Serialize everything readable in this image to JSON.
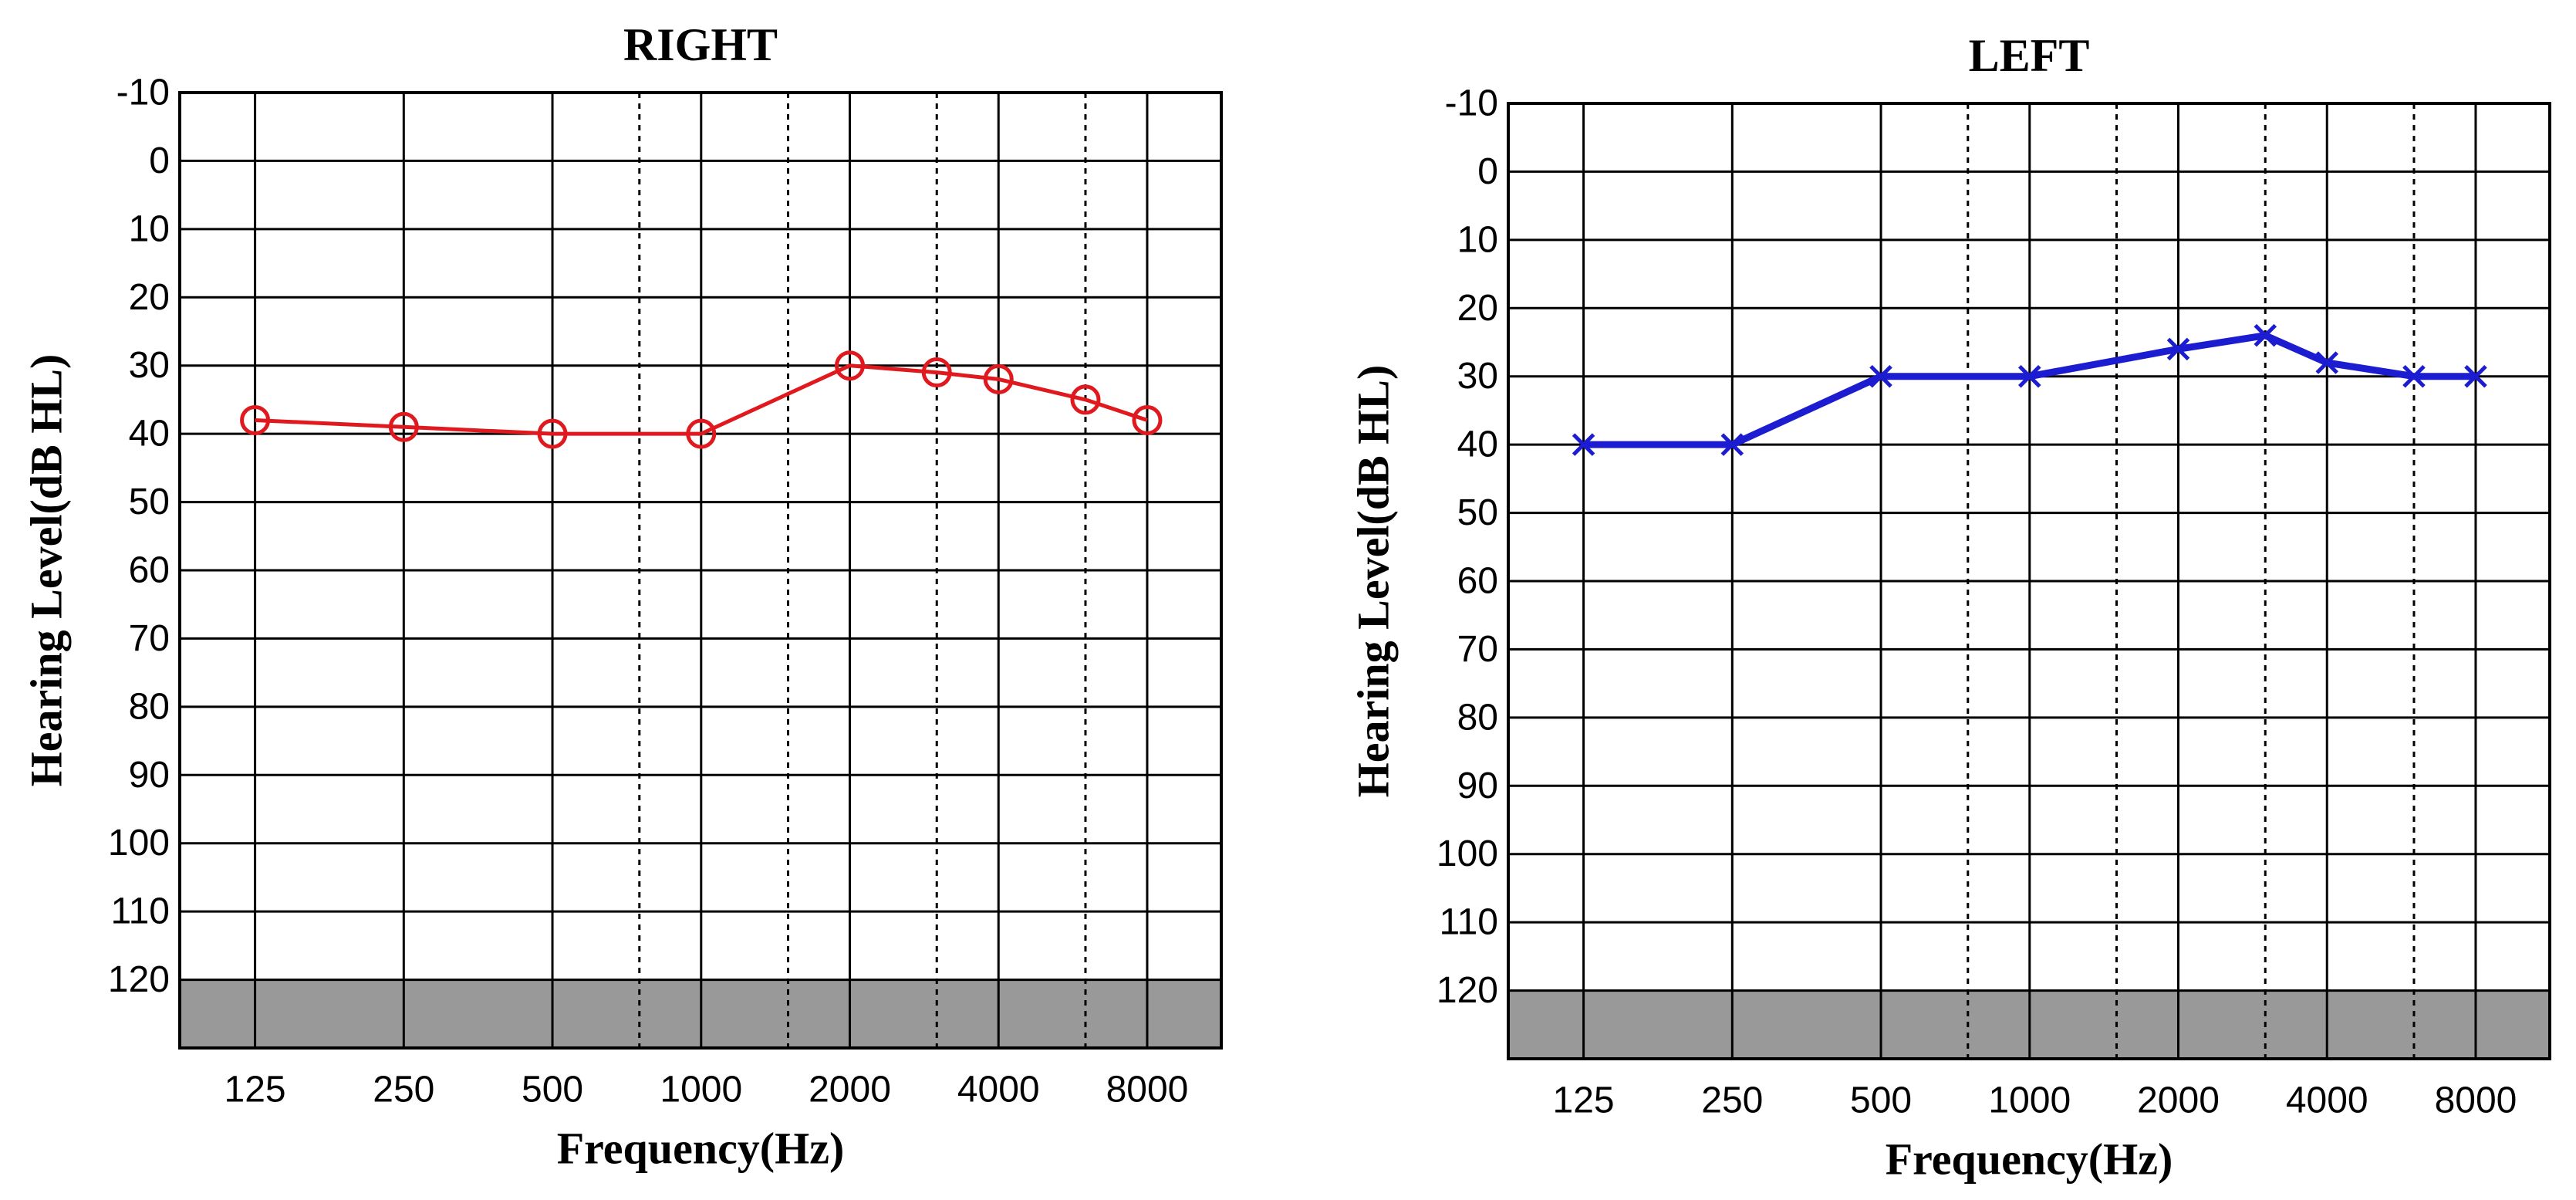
{
  "chart_data": [
    {
      "type": "line",
      "title": "RIGHT",
      "xlabel": "Frequency(Hz)",
      "ylabel": "Hearing Level(dB HL)",
      "x_scale": "log2",
      "x_tick_labels": [
        "125",
        "250",
        "500",
        "1000",
        "2000",
        "4000",
        "8000"
      ],
      "x_ticks": [
        125,
        250,
        500,
        1000,
        2000,
        4000,
        8000
      ],
      "x_intermediate_ticks": [
        750,
        1500,
        3000,
        6000
      ],
      "x_range": [
        88,
        11300
      ],
      "ylim": [
        -10,
        130
      ],
      "y_inverted": true,
      "y_ticks": [
        -10,
        0,
        10,
        20,
        30,
        40,
        50,
        60,
        70,
        80,
        90,
        100,
        110,
        120
      ],
      "grid": true,
      "shaded_band": {
        "from": 120,
        "to": 130,
        "color": "#999999"
      },
      "series": [
        {
          "marker": "circle",
          "color": "#e0191e",
          "x": [
            125,
            250,
            500,
            1000,
            2000,
            3000,
            4000,
            6000,
            8000
          ],
          "y": [
            38,
            39,
            40,
            40,
            30,
            31,
            32,
            35,
            38
          ]
        }
      ]
    },
    {
      "type": "line",
      "title": "LEFT",
      "xlabel": "Frequency(Hz)",
      "ylabel": "Hearing Level(dB HL)",
      "x_scale": "log2",
      "x_tick_labels": [
        "125",
        "250",
        "500",
        "1000",
        "2000",
        "4000",
        "8000"
      ],
      "x_ticks": [
        125,
        250,
        500,
        1000,
        2000,
        4000,
        8000
      ],
      "x_intermediate_ticks": [
        750,
        1500,
        3000,
        6000
      ],
      "x_range": [
        88,
        11300
      ],
      "ylim": [
        -10,
        130
      ],
      "y_inverted": true,
      "y_ticks": [
        -10,
        0,
        10,
        20,
        30,
        40,
        50,
        60,
        70,
        80,
        90,
        100,
        110,
        120
      ],
      "grid": true,
      "shaded_band": {
        "from": 120,
        "to": 130,
        "color": "#999999"
      },
      "series": [
        {
          "marker": "x",
          "color": "#1c1cd0",
          "x": [
            125,
            250,
            500,
            1000,
            2000,
            3000,
            4000,
            6000,
            8000
          ],
          "y": [
            40,
            40,
            30,
            30,
            26,
            24,
            28,
            30,
            30
          ]
        }
      ]
    }
  ]
}
